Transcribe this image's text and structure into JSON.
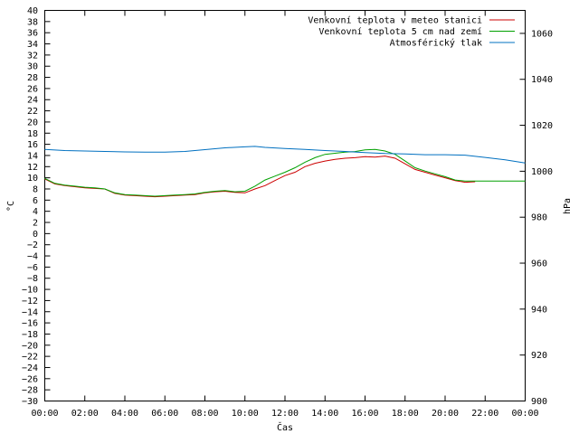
{
  "chart_data": {
    "type": "line",
    "xlabel": "Čas",
    "ylabel": "°C",
    "y2label": "hPa",
    "x_ticks": [
      "00:00",
      "02:00",
      "04:00",
      "06:00",
      "08:00",
      "10:00",
      "12:00",
      "14:00",
      "16:00",
      "18:00",
      "20:00",
      "22:00",
      "00:00"
    ],
    "xlim": [
      0,
      24
    ],
    "ylim": [
      -30,
      40
    ],
    "y_ticks": [
      -30,
      -28,
      -26,
      -24,
      -22,
      -20,
      -18,
      -16,
      -14,
      -12,
      -10,
      -8,
      -6,
      -4,
      -2,
      0,
      2,
      4,
      6,
      8,
      10,
      12,
      14,
      16,
      18,
      20,
      22,
      24,
      26,
      28,
      30,
      32,
      34,
      36,
      38,
      40
    ],
    "y2lim": [
      900,
      1070
    ],
    "y2_ticks": [
      900,
      920,
      940,
      960,
      980,
      1000,
      1020,
      1040,
      1060
    ],
    "grid": false,
    "legend_position": "top-right",
    "series": [
      {
        "name": "Venkovní teplota v meteo stanici",
        "color": "#cc0000",
        "axis": "left",
        "x": [
          0,
          0.5,
          1,
          1.5,
          2,
          2.5,
          3,
          3.5,
          4,
          4.5,
          5,
          5.5,
          6,
          6.5,
          7,
          7.5,
          8,
          8.5,
          9,
          9.5,
          10,
          10.5,
          11,
          11.5,
          12,
          12.5,
          13,
          13.5,
          14,
          14.5,
          15,
          15.5,
          16,
          16.5,
          17,
          17.5,
          18,
          18.5,
          19,
          19.5,
          20,
          20.5,
          21,
          21.5
        ],
        "values": [
          9.8,
          8.9,
          8.6,
          8.4,
          8.2,
          8.1,
          8.0,
          7.2,
          6.9,
          6.8,
          6.7,
          6.6,
          6.7,
          6.8,
          6.9,
          7.0,
          7.3,
          7.5,
          7.6,
          7.4,
          7.3,
          8.0,
          8.6,
          9.5,
          10.4,
          11.0,
          12.0,
          12.6,
          13.0,
          13.3,
          13.5,
          13.6,
          13.8,
          13.7,
          13.9,
          13.5,
          12.5,
          11.5,
          11.0,
          10.5,
          10.0,
          9.5,
          9.2,
          9.3
        ]
      },
      {
        "name": "Venkovní teplota 5 cm nad zemí",
        "color": "#00a000",
        "axis": "left",
        "x": [
          0,
          0.5,
          1,
          1.5,
          2,
          2.5,
          3,
          3.5,
          4,
          4.5,
          5,
          5.5,
          6,
          6.5,
          7,
          7.5,
          8,
          8.5,
          9,
          9.5,
          10,
          10.5,
          11,
          11.5,
          12,
          12.5,
          13,
          13.5,
          14,
          14.5,
          15,
          15.5,
          16,
          16.5,
          17,
          17.5,
          18,
          18.5,
          19,
          19.5,
          20,
          20.5,
          21,
          21.5,
          22,
          23,
          24
        ],
        "values": [
          9.9,
          9.0,
          8.7,
          8.5,
          8.3,
          8.2,
          8.0,
          7.3,
          7.0,
          6.9,
          6.8,
          6.7,
          6.8,
          6.9,
          7.0,
          7.1,
          7.4,
          7.6,
          7.7,
          7.5,
          7.6,
          8.5,
          9.6,
          10.3,
          11.0,
          11.8,
          12.8,
          13.6,
          14.2,
          14.4,
          14.6,
          14.7,
          15.0,
          15.1,
          14.8,
          14.2,
          13.0,
          11.8,
          11.2,
          10.7,
          10.2,
          9.6,
          9.4,
          9.4,
          9.4,
          9.4,
          9.4
        ]
      },
      {
        "name": "Atmosférický tlak",
        "color": "#0070c0",
        "axis": "right",
        "x": [
          0,
          1,
          2,
          3,
          4,
          5,
          6,
          7,
          8,
          9,
          10,
          10.5,
          11,
          12,
          13,
          14,
          15,
          16,
          17,
          18,
          19,
          20,
          21,
          22,
          23,
          24
        ],
        "values": [
          1009.5,
          1009.0,
          1008.8,
          1008.6,
          1008.4,
          1008.3,
          1008.3,
          1008.6,
          1009.4,
          1010.2,
          1010.6,
          1010.8,
          1010.4,
          1009.9,
          1009.5,
          1009.0,
          1008.6,
          1008.1,
          1007.7,
          1007.5,
          1007.2,
          1007.2,
          1007.0,
          1006.0,
          1005.0,
          1003.6
        ]
      }
    ]
  }
}
